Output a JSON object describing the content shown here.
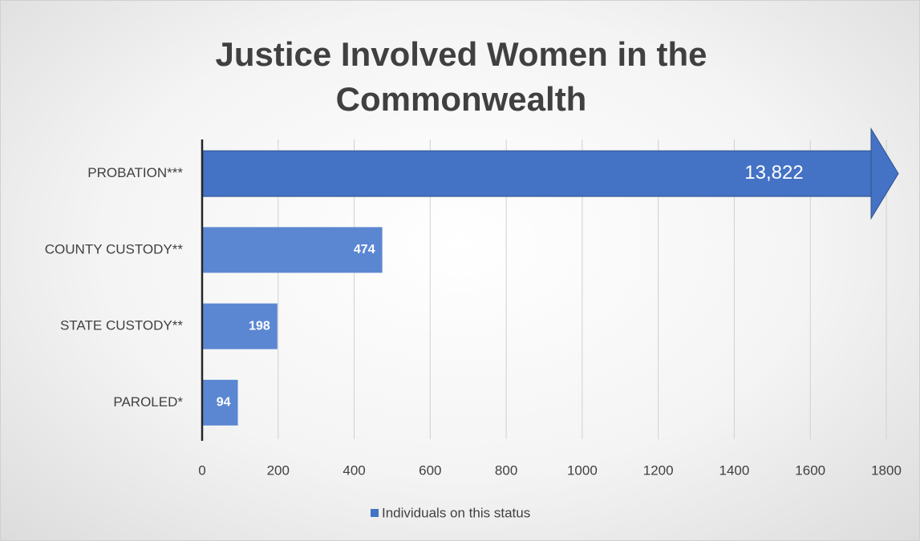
{
  "chart_data": {
    "type": "bar",
    "orientation": "horizontal",
    "title": "Justice Involved Women in the Commonwealth",
    "categories": [
      "PROBATION***",
      "COUNTY CUSTODY**",
      "STATE CUSTODY**",
      "PAROLED*"
    ],
    "series": [
      {
        "name": "Individuals on this status",
        "color": "#4472c4",
        "values": [
          13822,
          474,
          198,
          94
        ],
        "value_labels": [
          "13,822",
          "474",
          "198",
          "94"
        ]
      }
    ],
    "xlim": [
      0,
      1800
    ],
    "xticks": [
      0,
      200,
      400,
      600,
      800,
      1000,
      1200,
      1400,
      1600,
      1800
    ],
    "grid": true,
    "legend": "bottom"
  }
}
